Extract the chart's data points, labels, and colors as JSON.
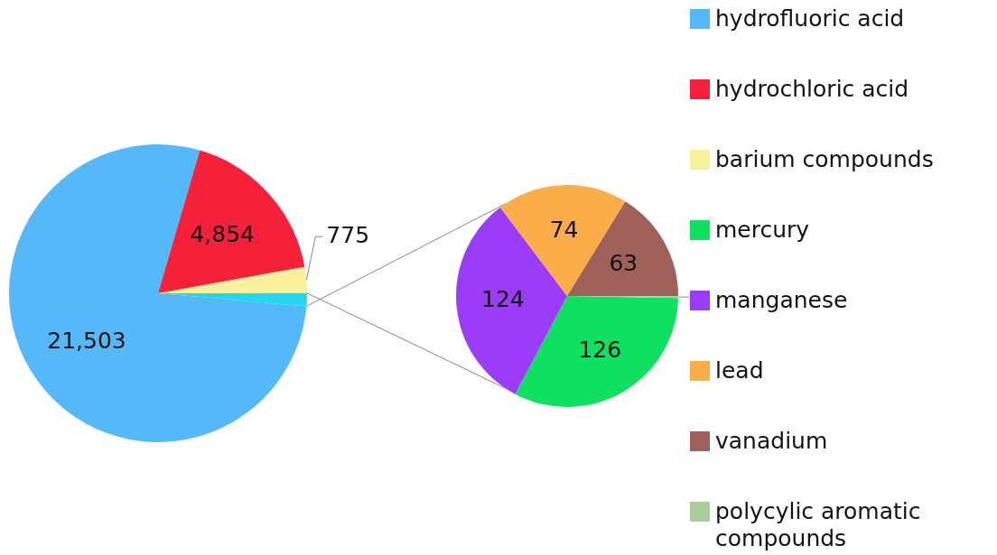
{
  "chart_data": [
    {
      "type": "pie",
      "categories": [
        "hydrofluoric acid",
        "hydrochloric acid",
        "barium compounds",
        null
      ],
      "values": [
        21503,
        4854,
        775,
        388
      ],
      "colors": [
        "#55b8f8",
        "#f5203a",
        "#f8f09a",
        "#22d8f0"
      ],
      "value_labels": [
        "21,503",
        "4,854",
        "775",
        null
      ],
      "legend": "right"
    },
    {
      "type": "pie",
      "categories": [
        "mercury",
        "manganese",
        "lead",
        "vanadium",
        "polycylic aromatic compounds"
      ],
      "values": [
        126,
        124,
        74,
        63,
        1
      ],
      "colors": [
        "#10e060",
        "#9b3cf8",
        "#fbad4a",
        "#a0605a",
        "#a8cc9c"
      ],
      "value_labels": [
        "126",
        "124",
        "74",
        "63",
        null
      ],
      "legend": "right"
    }
  ]
}
